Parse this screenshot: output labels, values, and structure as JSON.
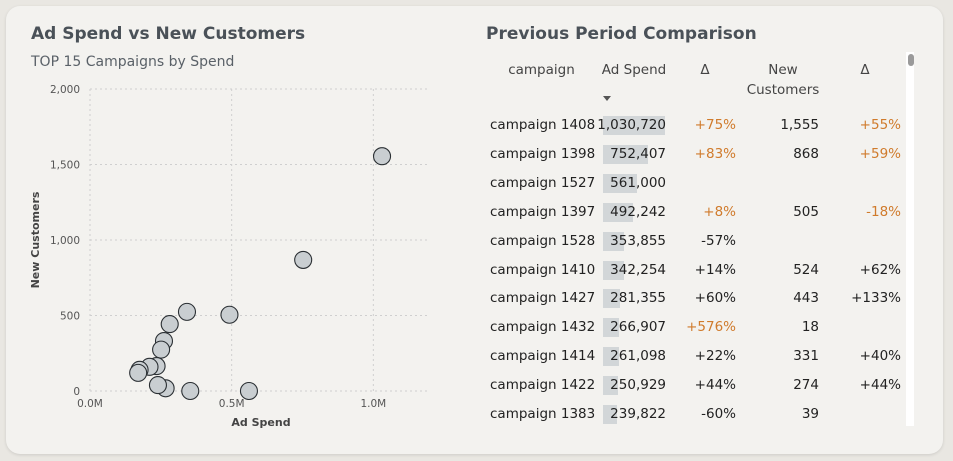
{
  "left_panel": {
    "title": "Ad Spend vs New Customers",
    "subtitle": "TOP 15 Campaigns by Spend"
  },
  "right_panel": {
    "title": "Previous Period Comparison",
    "headers": {
      "campaign": "campaign",
      "ad_spend": "Ad Spend",
      "delta1": "Δ",
      "new_customers_line1": "New",
      "new_customers_line2": "Customers",
      "delta2": "Δ"
    },
    "rows": [
      {
        "campaign": "campaign 1408",
        "ad_spend": "1,030,720",
        "delta1": "+75%",
        "new_customers": "1,555",
        "delta2": "+55%",
        "spend_value": 1030720,
        "delta1_highlight": true,
        "delta2_highlight": true
      },
      {
        "campaign": "campaign 1398",
        "ad_spend": "752,407",
        "delta1": "+83%",
        "new_customers": "868",
        "delta2": "+59%",
        "spend_value": 752407,
        "delta1_highlight": true,
        "delta2_highlight": true
      },
      {
        "campaign": "campaign 1527",
        "ad_spend": "561,000",
        "delta1": "",
        "new_customers": "",
        "delta2": "",
        "spend_value": 561000,
        "delta1_highlight": false,
        "delta2_highlight": false
      },
      {
        "campaign": "campaign 1397",
        "ad_spend": "492,242",
        "delta1": "+8%",
        "new_customers": "505",
        "delta2": "-18%",
        "spend_value": 492242,
        "delta1_highlight": true,
        "delta2_highlight": true
      },
      {
        "campaign": "campaign 1528",
        "ad_spend": "353,855",
        "delta1": "-57%",
        "new_customers": "",
        "delta2": "",
        "spend_value": 353855,
        "delta1_highlight": false,
        "delta2_highlight": false
      },
      {
        "campaign": "campaign 1410",
        "ad_spend": "342,254",
        "delta1": "+14%",
        "new_customers": "524",
        "delta2": "+62%",
        "spend_value": 342254,
        "delta1_highlight": false,
        "delta2_highlight": false
      },
      {
        "campaign": "campaign 1427",
        "ad_spend": "281,355",
        "delta1": "+60%",
        "new_customers": "443",
        "delta2": "+133%",
        "spend_value": 281355,
        "delta1_highlight": false,
        "delta2_highlight": false
      },
      {
        "campaign": "campaign 1432",
        "ad_spend": "266,907",
        "delta1": "+576%",
        "new_customers": "18",
        "delta2": "",
        "spend_value": 266907,
        "delta1_highlight": true,
        "delta2_highlight": false
      },
      {
        "campaign": "campaign 1414",
        "ad_spend": "261,098",
        "delta1": "+22%",
        "new_customers": "331",
        "delta2": "+40%",
        "spend_value": 261098,
        "delta1_highlight": false,
        "delta2_highlight": false
      },
      {
        "campaign": "campaign 1422",
        "ad_spend": "250,929",
        "delta1": "+44%",
        "new_customers": "274",
        "delta2": "+44%",
        "spend_value": 250929,
        "delta1_highlight": false,
        "delta2_highlight": false
      },
      {
        "campaign": "campaign 1383",
        "ad_spend": "239,822",
        "delta1": "-60%",
        "new_customers": "39",
        "delta2": "",
        "spend_value": 239822,
        "delta1_highlight": false,
        "delta2_highlight": false
      }
    ]
  },
  "colors": {
    "highlight": "#d07b2c",
    "bar": "#d2d6d8",
    "point_fill": "#c9ced1",
    "point_stroke": "#2a2f33"
  },
  "chart_data": [
    {
      "type": "scatter",
      "xlabel": "Ad Spend",
      "ylabel": "New Customers",
      "xlim": [
        0,
        1200000
      ],
      "ylim": [
        0,
        2000
      ],
      "x_ticks": [
        0,
        500000,
        1000000
      ],
      "x_tick_labels": [
        "0.0M",
        "0.5M",
        "1.0M"
      ],
      "y_ticks": [
        0,
        500,
        1000,
        1500,
        2000
      ],
      "y_tick_labels": [
        "0",
        "500",
        "1,000",
        "1,500",
        "2,000"
      ],
      "grid": true,
      "points": [
        {
          "x": 1030720,
          "y": 1555
        },
        {
          "x": 752407,
          "y": 868
        },
        {
          "x": 561000,
          "y": 0
        },
        {
          "x": 492242,
          "y": 505
        },
        {
          "x": 353855,
          "y": 0
        },
        {
          "x": 342254,
          "y": 524
        },
        {
          "x": 281355,
          "y": 443
        },
        {
          "x": 266907,
          "y": 18
        },
        {
          "x": 261098,
          "y": 331
        },
        {
          "x": 250929,
          "y": 274
        },
        {
          "x": 239822,
          "y": 39
        },
        {
          "x": 235000,
          "y": 165
        },
        {
          "x": 210000,
          "y": 160
        },
        {
          "x": 175000,
          "y": 140
        },
        {
          "x": 170000,
          "y": 120
        }
      ]
    },
    {
      "type": "table",
      "title": "Previous Period Comparison"
    }
  ]
}
